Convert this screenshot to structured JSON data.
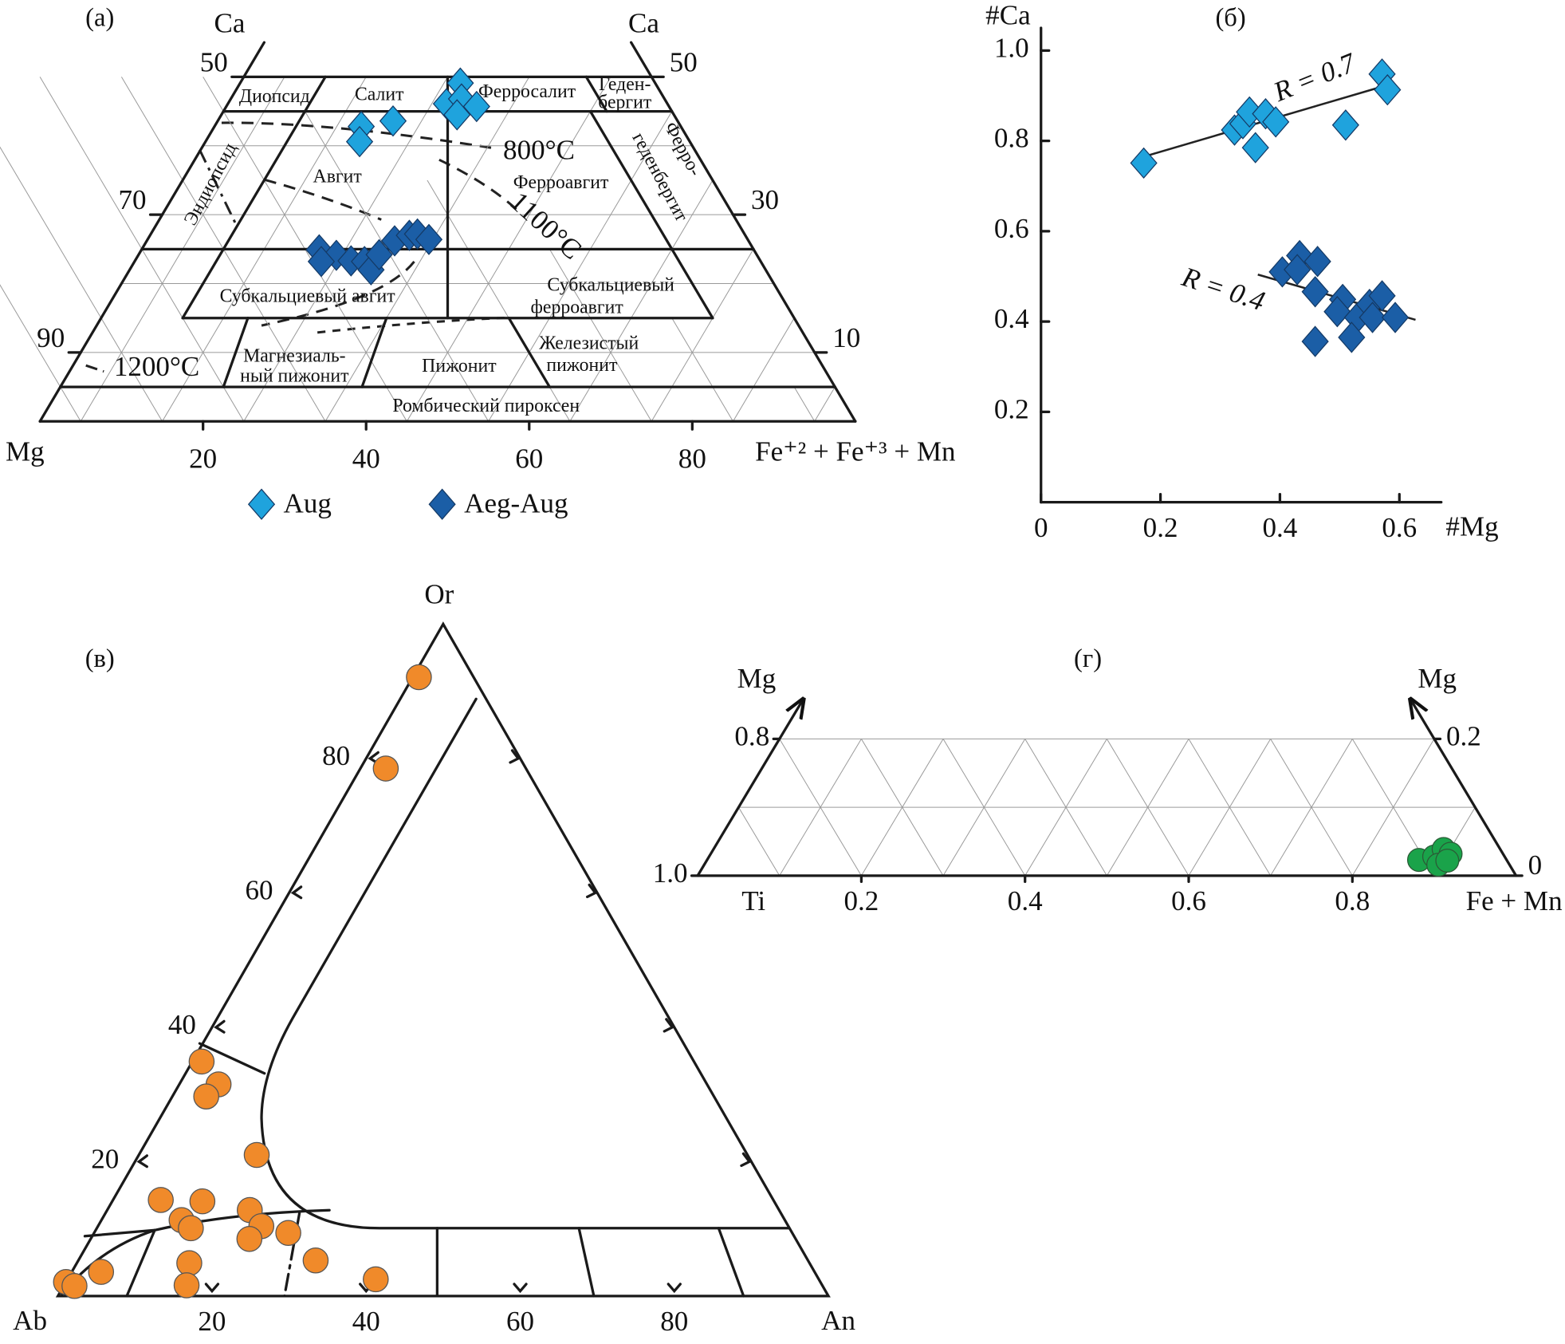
{
  "chart_data": [
    {
      "type": "pyroxene-ternary",
      "panel_label": "(а)",
      "corner_labels": {
        "top_left": "Ca",
        "top_right": "Ca",
        "bottom_left": "Mg",
        "bottom_right": "Fe⁺² + Fe⁺³ + Mn"
      },
      "bottom_ticks": [
        20,
        40,
        60,
        80
      ],
      "left_ticks": [
        50,
        70,
        90
      ],
      "right_ticks": [
        50,
        30,
        10
      ],
      "grid": true,
      "fields": [
        [
          "Диопсид"
        ],
        [
          "Салит"
        ],
        [
          "Ферросалит"
        ],
        [
          "Геден-",
          "бергит"
        ],
        [
          "Ферро-",
          "геденбергит"
        ],
        [
          "Эндиопсид"
        ],
        [
          "Авгит"
        ],
        [
          "Ферроавгит"
        ],
        [
          "Субкальциевый авгит"
        ],
        [
          "Субкальциевый",
          "ферроавгит"
        ],
        [
          "Магнезиаль-",
          "ный пижонит"
        ],
        [
          "Пижонит"
        ],
        [
          "Железистый",
          "пижонит"
        ],
        [
          "Ромбический пироксен"
        ]
      ],
      "isotherms": [
        "800°C",
        "1100°C",
        "1200°C"
      ],
      "series": [
        {
          "name": "Aug",
          "color": "#1fa3dd",
          "ca": [
            49.1,
            46.1,
            46.8,
            45.7,
            44.5,
            43.6,
            42.8,
            40.6
          ],
          "fe": [
            27.0,
            26.8,
            28.3,
            30.7,
            28.9,
            21.5,
            18.0,
            18.9
          ]
        },
        {
          "name": "Aeg-Aug",
          "color": "#1b5ea6",
          "ca": [
            24.9,
            24.1,
            23.3,
            23.2,
            22.0,
            24.2,
            26.2,
            27.0,
            27.2,
            26.4,
            23.2
          ],
          "fe": [
            21.8,
            24.3,
            26.5,
            28.2,
            29.6,
            29.5,
            30.4,
            31.8,
            32.7,
            34.5,
            22.9
          ]
        }
      ]
    },
    {
      "type": "scatter",
      "panel_label": "(б)",
      "x_label": "#Mg",
      "y_label": "#Ca",
      "xlim": [
        0,
        0.67
      ],
      "ylim": [
        0,
        1.05
      ],
      "xticks": [
        0,
        0.2,
        0.4,
        0.6
      ],
      "yticks": [
        0.2,
        0.4,
        0.6,
        0.8,
        {
          "value": 1,
          "label": "1.0"
        }
      ],
      "series": [
        {
          "color": "#1fa3dd",
          "x": [
            0.172,
            0.324,
            0.338,
            0.349,
            0.359,
            0.376,
            0.393,
            0.51,
            0.571,
            0.58
          ],
          "y": [
            0.751,
            0.824,
            0.838,
            0.864,
            0.785,
            0.86,
            0.842,
            0.835,
            0.948,
            0.913
          ]
        },
        {
          "color": "#1b5ea6",
          "x": [
            0.404,
            0.433,
            0.429,
            0.463,
            0.459,
            0.505,
            0.496,
            0.53,
            0.55,
            0.571,
            0.555,
            0.593,
            0.459,
            0.52
          ],
          "y": [
            0.51,
            0.546,
            0.515,
            0.533,
            0.466,
            0.449,
            0.422,
            0.409,
            0.438,
            0.457,
            0.409,
            0.409,
            0.356,
            0.365
          ]
        }
      ],
      "trend_lines": [
        {
          "label": "R = 0.7",
          "x": [
            0.172,
            0.563
          ],
          "y": [
            0.765,
            0.917
          ]
        },
        {
          "label": "R = 0.4",
          "x": [
            0.363,
            0.627
          ],
          "y": [
            0.504,
            0.404
          ]
        }
      ]
    },
    {
      "type": "feldspar-ternary",
      "panel_label": "(в)",
      "corner_labels": {
        "top": "Or",
        "bottom_left": "Ab",
        "bottom_right": "An"
      },
      "bottom_ticks": [
        20,
        40,
        60,
        80
      ],
      "left_ticks": [
        80,
        60,
        40,
        20
      ],
      "series": [
        {
          "color": "#f08a2a",
          "or": [
            92.1,
            78.5,
            34.9,
            31.5,
            29.7,
            21.0,
            14.3,
            14.1,
            12.8,
            11.3,
            10.1,
            10.4,
            9.4,
            8.5,
            4.9,
            5.3,
            1.6,
            3.6,
            2.5,
            2.1,
            1.5
          ],
          "an": [
            0.8,
            3.3,
            1.2,
            5.1,
            4.4,
            15.3,
            6.2,
            11.7,
            18.5,
            10.4,
            12.2,
            21.2,
            25.2,
            20.6,
            14.6,
            30.8,
            15.9,
            3.8,
            40.0,
            0,
            1.4
          ]
        }
      ]
    },
    {
      "type": "oxide-ternary",
      "panel_label": "(г)",
      "corner_labels": {
        "top_left": "Mg",
        "top_right": "Mg",
        "bottom_left": "Ti",
        "bottom_right": "Fe + Mn"
      },
      "bottom_ticks": [
        0.2,
        0.4,
        0.6,
        0.8
      ],
      "left_ticks": [
        {
          "value": 1,
          "label": "1.0"
        },
        0.8
      ],
      "right_ticks": [
        0,
        0.2
      ],
      "grid": true,
      "series": [
        {
          "color": "#1aa34a",
          "mg": [
            0.023,
            0.028,
            0.039,
            0.032,
            0.016,
            0.022
          ],
          "fe": [
            0.87,
            0.886,
            0.892,
            0.904,
            0.897,
            0.905
          ]
        }
      ]
    }
  ]
}
